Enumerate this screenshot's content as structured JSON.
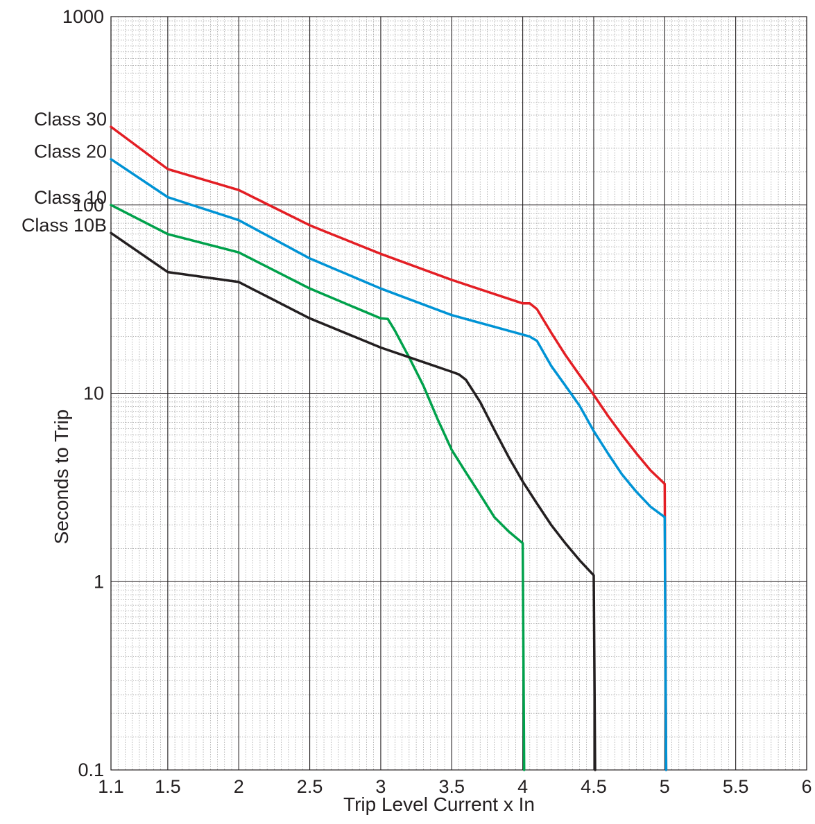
{
  "chart_data": {
    "type": "line",
    "xlabel": "Trip Level Current x In",
    "ylabel": "Seconds to Trip",
    "xlim": [
      1.1,
      6
    ],
    "ylim": [
      0.1,
      1000
    ],
    "y_scale": "log",
    "grid": true,
    "x_ticks": [
      1.1,
      1.5,
      2,
      2.5,
      3,
      3.5,
      4,
      4.5,
      5,
      5.5,
      6
    ],
    "x_tick_labels": [
      "1.1",
      "1.5",
      "2",
      "2.5",
      "3",
      "3.5",
      "4",
      "4.5",
      "5",
      "5.5",
      "6"
    ],
    "y_ticks": [
      0.1,
      1,
      10,
      100,
      1000
    ],
    "y_tick_labels": [
      "0.1",
      "1",
      "10",
      "100",
      "1000"
    ],
    "series": [
      {
        "name": "Class 30",
        "color": "#e31e24",
        "x": [
          1.1,
          1.5,
          2.0,
          2.5,
          3.0,
          3.5,
          4.0,
          4.05,
          4.1,
          4.2,
          4.3,
          4.4,
          4.5,
          4.6,
          4.7,
          4.8,
          4.9,
          5.0,
          5.0,
          5.01
        ],
        "y": [
          260,
          155,
          120,
          78,
          55,
          40,
          30,
          30,
          28,
          21,
          16,
          12.5,
          9.8,
          7.6,
          6,
          4.8,
          3.9,
          3.3,
          3.3,
          0.1
        ]
      },
      {
        "name": "Class 20",
        "color": "#0093d5",
        "x": [
          1.1,
          1.5,
          2.0,
          2.5,
          3.0,
          3.5,
          4.0,
          4.05,
          4.1,
          4.2,
          4.3,
          4.4,
          4.5,
          4.6,
          4.7,
          4.8,
          4.9,
          5.0,
          5.0,
          5.01
        ],
        "y": [
          175,
          110,
          83,
          52,
          36,
          26,
          20.5,
          20,
          19,
          14,
          11,
          8.6,
          6.3,
          4.8,
          3.7,
          3.0,
          2.5,
          2.2,
          2.2,
          0.1
        ]
      },
      {
        "name": "Class 10",
        "color": "#00a14b",
        "x": [
          1.1,
          1.5,
          2.0,
          2.5,
          3.0,
          3.05,
          3.1,
          3.2,
          3.3,
          3.4,
          3.5,
          3.6,
          3.7,
          3.8,
          3.9,
          4.0,
          4.0,
          4.01
        ],
        "y": [
          100,
          70,
          56,
          36,
          25,
          24.8,
          21.5,
          15.5,
          11,
          7.3,
          5.0,
          3.8,
          2.9,
          2.2,
          1.85,
          1.6,
          1.6,
          0.1
        ]
      },
      {
        "name": "Class 10B",
        "color": "#231f20",
        "x": [
          1.1,
          1.5,
          2.0,
          2.5,
          3.0,
          3.5,
          3.55,
          3.6,
          3.7,
          3.8,
          3.9,
          4.0,
          4.1,
          4.2,
          4.3,
          4.4,
          4.5,
          4.5,
          4.51
        ],
        "y": [
          71,
          44,
          39,
          25,
          17.5,
          13,
          12.6,
          11.8,
          9,
          6.4,
          4.6,
          3.4,
          2.6,
          2.0,
          1.6,
          1.3,
          1.08,
          1.08,
          0.1
        ]
      }
    ]
  }
}
